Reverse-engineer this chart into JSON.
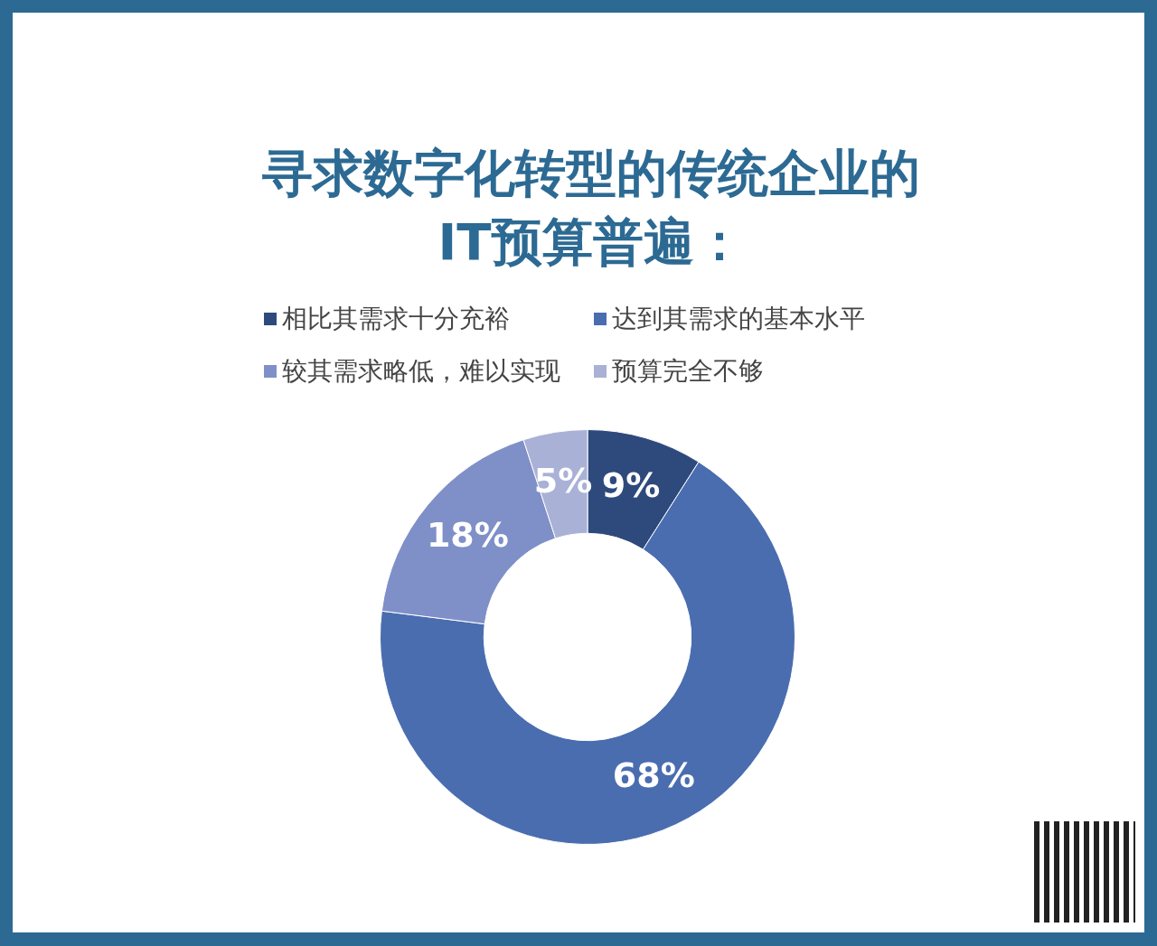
{
  "chart_data": {
    "type": "donut",
    "title": "寻求数字化转型的传统企业的IT预算普遍：",
    "categories": [
      "相比其需求十分充裕",
      "达到其需求的基本水平",
      "较其需求略低，难以实现",
      "预算完全不够"
    ],
    "values": [
      9,
      68,
      18,
      5
    ],
    "colors": [
      "#2e4a7d",
      "#4a6db0",
      "#7f90c8",
      "#a9b1d6"
    ],
    "value_labels": [
      "9%",
      "68%",
      "18%",
      "5%"
    ],
    "legend": "top"
  }
}
